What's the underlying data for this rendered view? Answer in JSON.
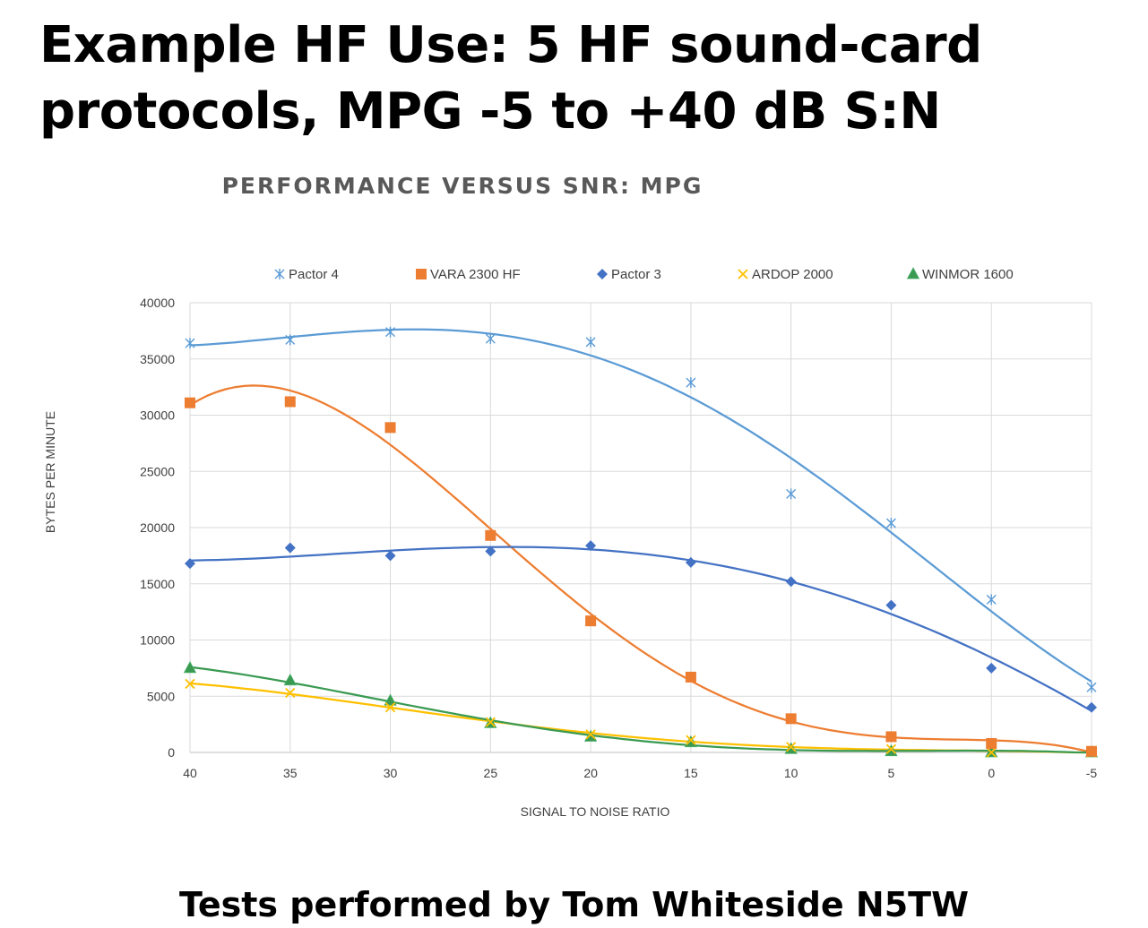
{
  "slide": {
    "title_line1": "Example HF Use: 5 HF sound-card",
    "title_line2": "protocols, MPG -5 to +40 dB S:N",
    "footer": "Tests performed by Tom Whiteside N5TW"
  },
  "chart_data": {
    "type": "scatter",
    "title": "PERFORMANCE VERSUS SNR: MPG",
    "xlabel": "SIGNAL TO NOISE RATIO",
    "ylabel": "BYTES PER MINUTE",
    "x": [
      40,
      35,
      30,
      25,
      20,
      15,
      10,
      5,
      0,
      -5
    ],
    "x_tick_labels": [
      "40",
      "35",
      "30",
      "25",
      "20",
      "15",
      "10",
      "5",
      "0",
      "-5"
    ],
    "xlim": [
      40,
      -5
    ],
    "x_reversed": true,
    "ylim": [
      0,
      40000
    ],
    "y_ticks": [
      "0",
      "5000",
      "10000",
      "15000",
      "20000",
      "25000",
      "30000",
      "35000",
      "40000"
    ],
    "grid": true,
    "legend_position": "top",
    "trendlines": "polynomial",
    "series": [
      {
        "name": "Pactor 4",
        "marker": "asterisk",
        "color": "#5B9BD5",
        "values": [
          36400,
          36700,
          37400,
          36800,
          36500,
          32900,
          23000,
          20400,
          13600,
          5800
        ]
      },
      {
        "name": "VARA 2300 HF",
        "marker": "square",
        "color": "#ED7D31",
        "values": [
          31100,
          31200,
          28900,
          19300,
          11700,
          6700,
          3000,
          1400,
          800,
          100
        ]
      },
      {
        "name": "Pactor 3",
        "marker": "diamond",
        "color": "#4472C4",
        "values": [
          16800,
          18200,
          17500,
          17900,
          18400,
          16900,
          15200,
          13100,
          7500,
          4000
        ]
      },
      {
        "name": "ARDOP 2000",
        "marker": "x",
        "color": "#FFC000",
        "values": [
          6100,
          5300,
          4000,
          2700,
          1600,
          1100,
          500,
          300,
          0,
          0
        ]
      },
      {
        "name": "WINMOR 1600",
        "marker": "triangle",
        "color": "#3A9A52",
        "values": [
          7500,
          6400,
          4600,
          2600,
          1400,
          900,
          300,
          100,
          0,
          0
        ]
      }
    ]
  }
}
